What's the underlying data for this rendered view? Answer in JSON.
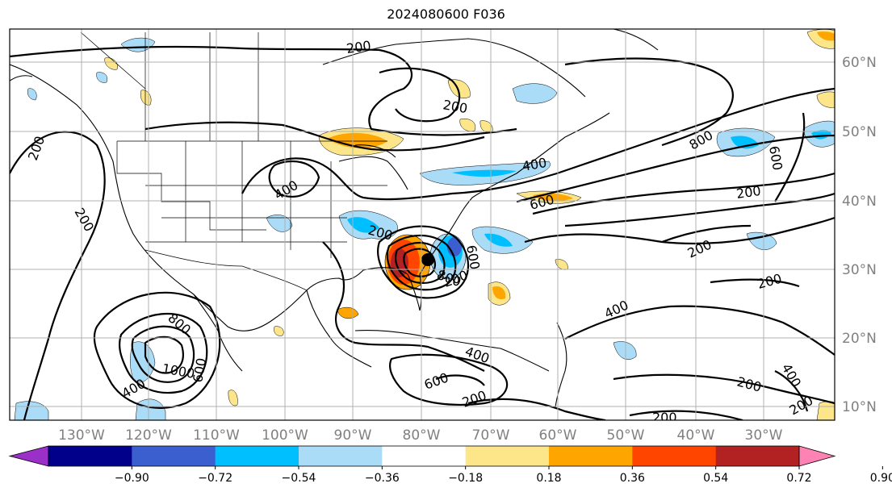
{
  "title": "2024080600 F036",
  "lon_labels": [
    "130°W",
    "120°W",
    "110°W",
    "100°W",
    "90°W",
    "80°W",
    "70°W",
    "60°W",
    "50°W",
    "40°W",
    "30°W"
  ],
  "lat_labels": [
    "60°N",
    "50°N",
    "40°N",
    "30°N",
    "20°N",
    "10°N"
  ],
  "contour_labels": [
    "200",
    "200",
    "200",
    "200",
    "200",
    "200",
    "200",
    "200",
    "200",
    "200",
    "200",
    "200",
    "200",
    "400",
    "400",
    "400",
    "400",
    "400",
    "400",
    "600",
    "600",
    "600",
    "600",
    "600",
    "800",
    "800",
    "800",
    "1000"
  ],
  "colorbar": {
    "ticks": [
      "−0.90",
      "−0.72",
      "−0.54",
      "−0.36",
      "−0.18",
      "0.18",
      "0.36",
      "0.54",
      "0.72",
      "0.90"
    ],
    "colors": [
      "#9b30c8",
      "#00008b",
      "#3c5fcf",
      "#00bfff",
      "#aadcf8",
      "#ffffff",
      "#fde68a",
      "#ffa500",
      "#ff4500",
      "#b22222",
      "#ff82b4"
    ]
  }
}
